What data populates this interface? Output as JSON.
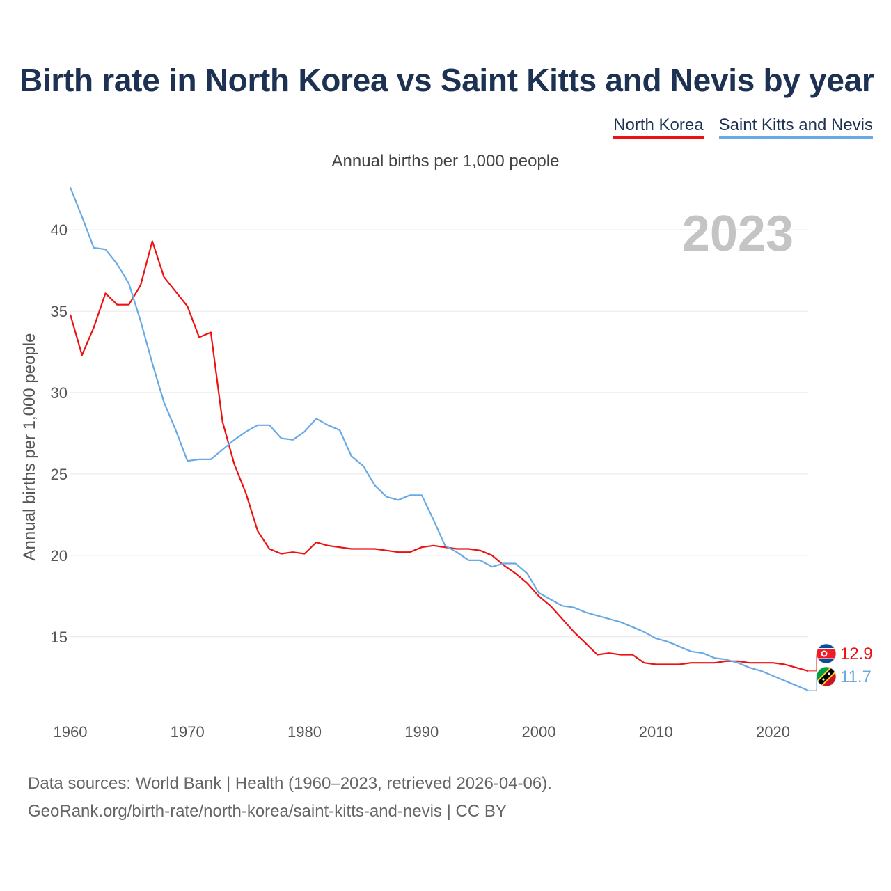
{
  "title": "Birth rate in North Korea vs Saint Kitts and Nevis by year",
  "subtitle": "Annual births per 1,000 people",
  "source_line1": "Data sources: World Bank | Health (1960–2023, retrieved 2026-04-06).",
  "source_line2": "GeoRank.org/birth-rate/north-korea/saint-kitts-and-nevis | CC BY",
  "chart_data": {
    "type": "line",
    "title": "Birth rate in North Korea vs Saint Kitts and Nevis by year",
    "year_label": "2023",
    "xlabel": "",
    "ylabel": "Annual births per 1,000 people",
    "xlim": [
      1960,
      2023
    ],
    "ylim": [
      10.5,
      43
    ],
    "x_ticks": [
      1960,
      1970,
      1980,
      1990,
      2000,
      2010,
      2020
    ],
    "y_ticks": [
      15,
      20,
      25,
      30,
      35,
      40
    ],
    "grid": true,
    "legend_position": "top-right",
    "x": [
      1960,
      1961,
      1962,
      1963,
      1964,
      1965,
      1966,
      1967,
      1968,
      1969,
      1970,
      1971,
      1972,
      1973,
      1974,
      1975,
      1976,
      1977,
      1978,
      1979,
      1980,
      1981,
      1982,
      1983,
      1984,
      1985,
      1986,
      1987,
      1988,
      1989,
      1990,
      1991,
      1992,
      1993,
      1994,
      1995,
      1996,
      1997,
      1998,
      1999,
      2000,
      2001,
      2002,
      2003,
      2004,
      2005,
      2006,
      2007,
      2008,
      2009,
      2010,
      2011,
      2012,
      2013,
      2014,
      2015,
      2016,
      2017,
      2018,
      2019,
      2020,
      2021,
      2022,
      2023
    ],
    "series": [
      {
        "name": "North Korea",
        "color": "#ee1111",
        "flag": "north-korea-flag-icon",
        "end_label": "12.9",
        "values": [
          34.8,
          32.3,
          34.0,
          36.1,
          35.4,
          35.4,
          36.6,
          39.3,
          37.1,
          36.2,
          35.3,
          33.4,
          33.7,
          28.2,
          25.6,
          23.8,
          21.5,
          20.4,
          20.1,
          20.2,
          20.1,
          20.8,
          20.6,
          20.5,
          20.4,
          20.4,
          20.4,
          20.3,
          20.2,
          20.2,
          20.5,
          20.6,
          20.5,
          20.4,
          20.4,
          20.3,
          20.0,
          19.4,
          18.9,
          18.3,
          17.5,
          16.9,
          16.1,
          15.3,
          14.6,
          13.9,
          14.0,
          13.9,
          13.9,
          13.4,
          13.3,
          13.3,
          13.3,
          13.4,
          13.4,
          13.4,
          13.5,
          13.5,
          13.4,
          13.4,
          13.4,
          13.3,
          13.1,
          12.9
        ]
      },
      {
        "name": "Saint Kitts and Nevis",
        "color": "#6aaae4",
        "flag": "saint-kitts-and-nevis-flag-icon",
        "end_label": "11.7",
        "values": [
          42.6,
          40.8,
          38.9,
          38.8,
          37.9,
          36.7,
          34.4,
          31.8,
          29.4,
          27.7,
          25.8,
          25.9,
          25.9,
          26.5,
          27.1,
          27.6,
          28.0,
          28.0,
          27.2,
          27.1,
          27.6,
          28.4,
          28.0,
          27.7,
          26.1,
          25.5,
          24.3,
          23.6,
          23.4,
          23.7,
          23.7,
          22.2,
          20.6,
          20.2,
          19.7,
          19.7,
          19.3,
          19.5,
          19.5,
          18.9,
          17.7,
          17.3,
          16.9,
          16.8,
          16.5,
          16.3,
          16.1,
          15.9,
          15.6,
          15.3,
          14.9,
          14.7,
          14.4,
          14.1,
          14.0,
          13.7,
          13.6,
          13.4,
          13.1,
          12.9,
          12.6,
          12.3,
          12.0,
          11.7
        ]
      }
    ]
  }
}
